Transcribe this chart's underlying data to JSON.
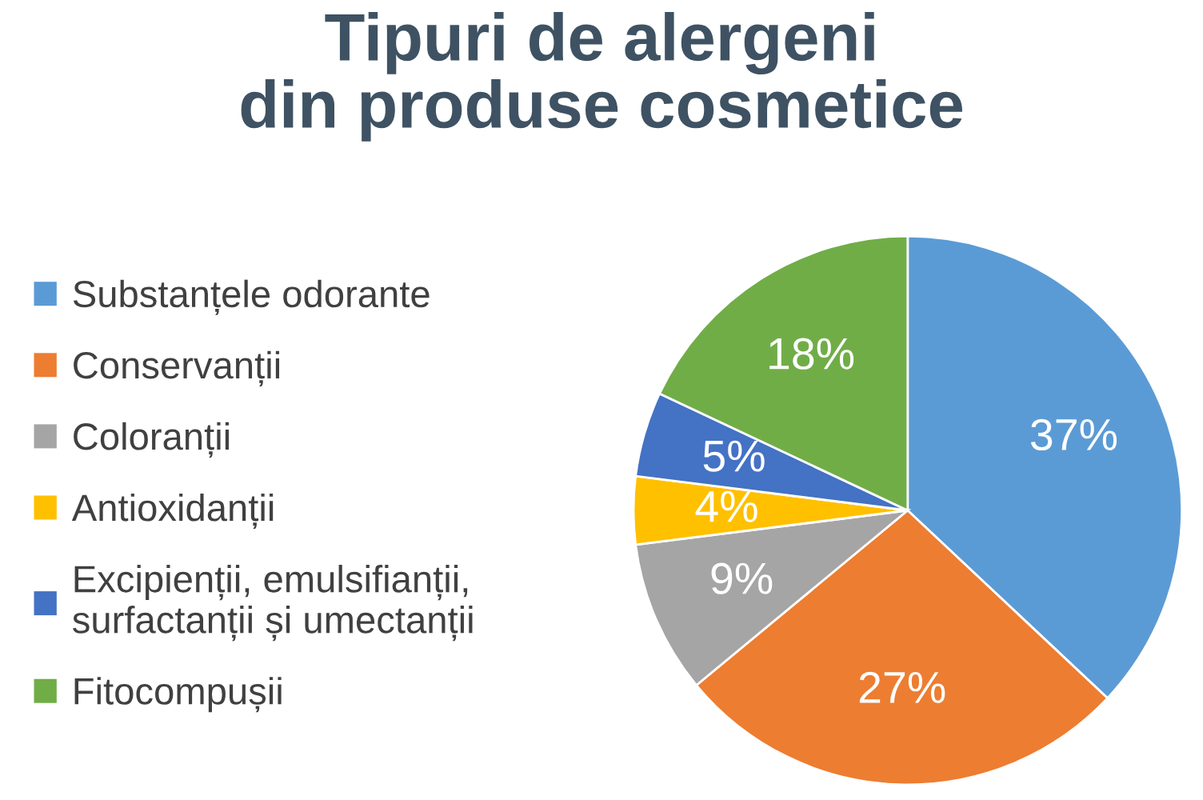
{
  "chart_data": {
    "type": "pie",
    "title": "Tipuri de alergeni\ndin produse cosmetice",
    "categories": [
      "Substanțele odorante",
      "Conservanții",
      "Coloranții",
      "Antioxidanții",
      "Excipienții, emulsifianții,\nsurfactanții și umectanții",
      "Fitocompușii"
    ],
    "values": [
      37,
      27,
      9,
      4,
      5,
      18
    ],
    "colors": [
      "#5b9bd5",
      "#ed7d31",
      "#a5a5a5",
      "#ffc000",
      "#4472c4",
      "#70ad47"
    ],
    "value_labels": [
      "37%",
      "27%",
      "9%",
      "4%",
      "5%",
      "18%"
    ],
    "legend": "left"
  }
}
